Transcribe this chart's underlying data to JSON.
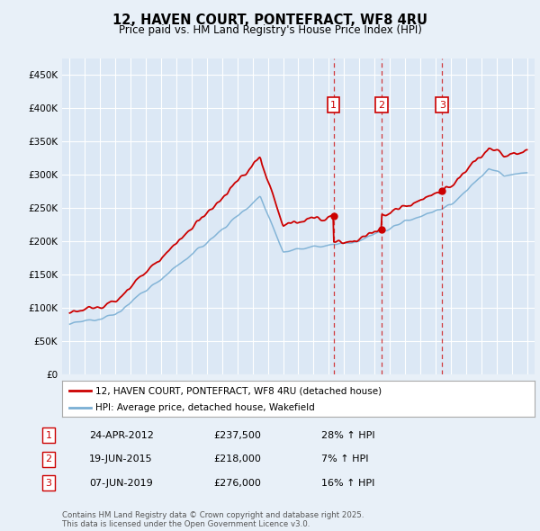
{
  "title": "12, HAVEN COURT, PONTEFRACT, WF8 4RU",
  "subtitle": "Price paid vs. HM Land Registry's House Price Index (HPI)",
  "background_color": "#e8f0f8",
  "plot_bg_color": "#dce8f5",
  "legend_label_red": "12, HAVEN COURT, PONTEFRACT, WF8 4RU (detached house)",
  "legend_label_blue": "HPI: Average price, detached house, Wakefield",
  "transactions": [
    {
      "num": 1,
      "date": "24-APR-2012",
      "price": 237500,
      "pct": "28%",
      "dir": "↑",
      "year": 2012.31
    },
    {
      "num": 2,
      "date": "19-JUN-2015",
      "price": 218000,
      "pct": "7%",
      "dir": "↑",
      "year": 2015.47
    },
    {
      "num": 3,
      "date": "07-JUN-2019",
      "price": 276000,
      "pct": "16%",
      "dir": "↑",
      "year": 2019.43
    }
  ],
  "footer": "Contains HM Land Registry data © Crown copyright and database right 2025.\nThis data is licensed under the Open Government Licence v3.0.",
  "ylim": [
    0,
    475000
  ],
  "yticks": [
    0,
    50000,
    100000,
    150000,
    200000,
    250000,
    300000,
    350000,
    400000,
    450000
  ],
  "xlim": [
    1994.5,
    2025.5
  ],
  "red_color": "#cc0000",
  "blue_color": "#7aafd4"
}
